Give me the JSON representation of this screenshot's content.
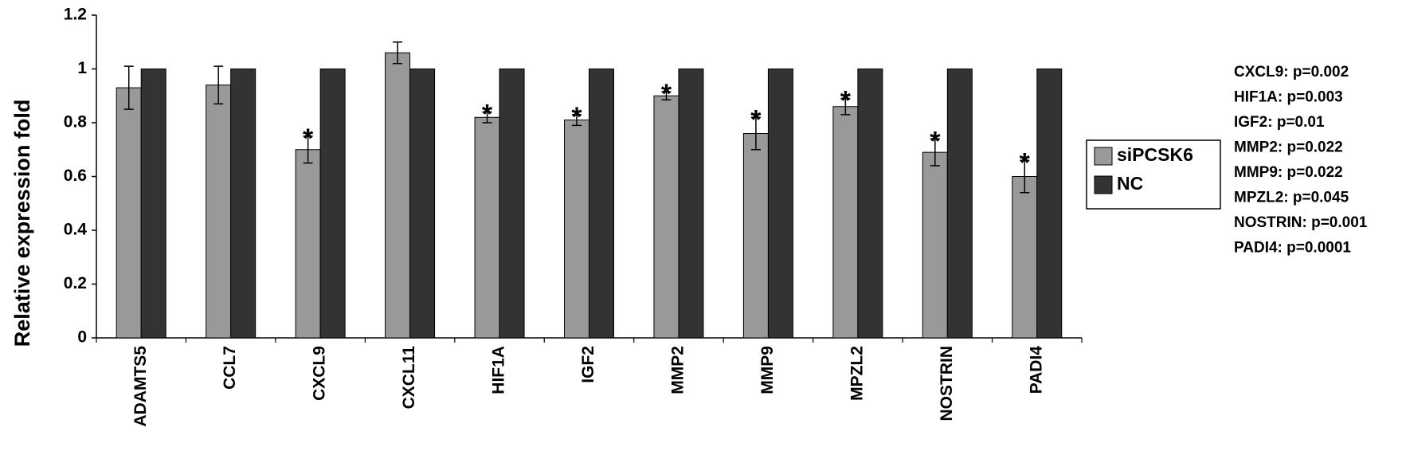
{
  "chart_data": {
    "type": "bar",
    "y_label": "Relative expression fold",
    "categories": [
      "ADAMTS5",
      "CCL7",
      "CXCL9",
      "CXCL11",
      "HIF1A",
      "IGF2",
      "MMP2",
      "MMP9",
      "MPZL2",
      "NOSTRIN",
      "PADI4"
    ],
    "series": [
      {
        "name": "siPCSK6",
        "color": "#999999",
        "values": [
          0.93,
          0.94,
          0.7,
          1.06,
          0.82,
          0.81,
          0.9,
          0.76,
          0.86,
          0.69,
          0.6
        ],
        "errors": [
          0.08,
          0.07,
          0.05,
          0.04,
          0.02,
          0.02,
          0.015,
          0.06,
          0.03,
          0.05,
          0.06
        ]
      },
      {
        "name": "NC",
        "color": "#333333",
        "values": [
          1,
          1,
          1,
          1,
          1,
          1,
          1,
          1,
          1,
          1,
          1
        ]
      }
    ],
    "significance_marks": [
      null,
      null,
      "*",
      null,
      "*",
      "*",
      "*",
      "*",
      "*",
      "*",
      "*"
    ],
    "annotations": [
      "CXCL9: p=0.002",
      "HIF1A: p=0.003",
      "IGF2: p=0.01",
      "MMP2: p=0.022",
      "MMP9: p=0.022",
      "MPZL2: p=0.045",
      "NOSTRIN: p=0.001",
      "PADI4: p=0.0001"
    ],
    "ylim": [
      0,
      1.2
    ],
    "yticks": [
      0,
      0.2,
      0.4,
      0.6,
      0.8,
      1,
      1.2
    ],
    "legend": "right"
  }
}
